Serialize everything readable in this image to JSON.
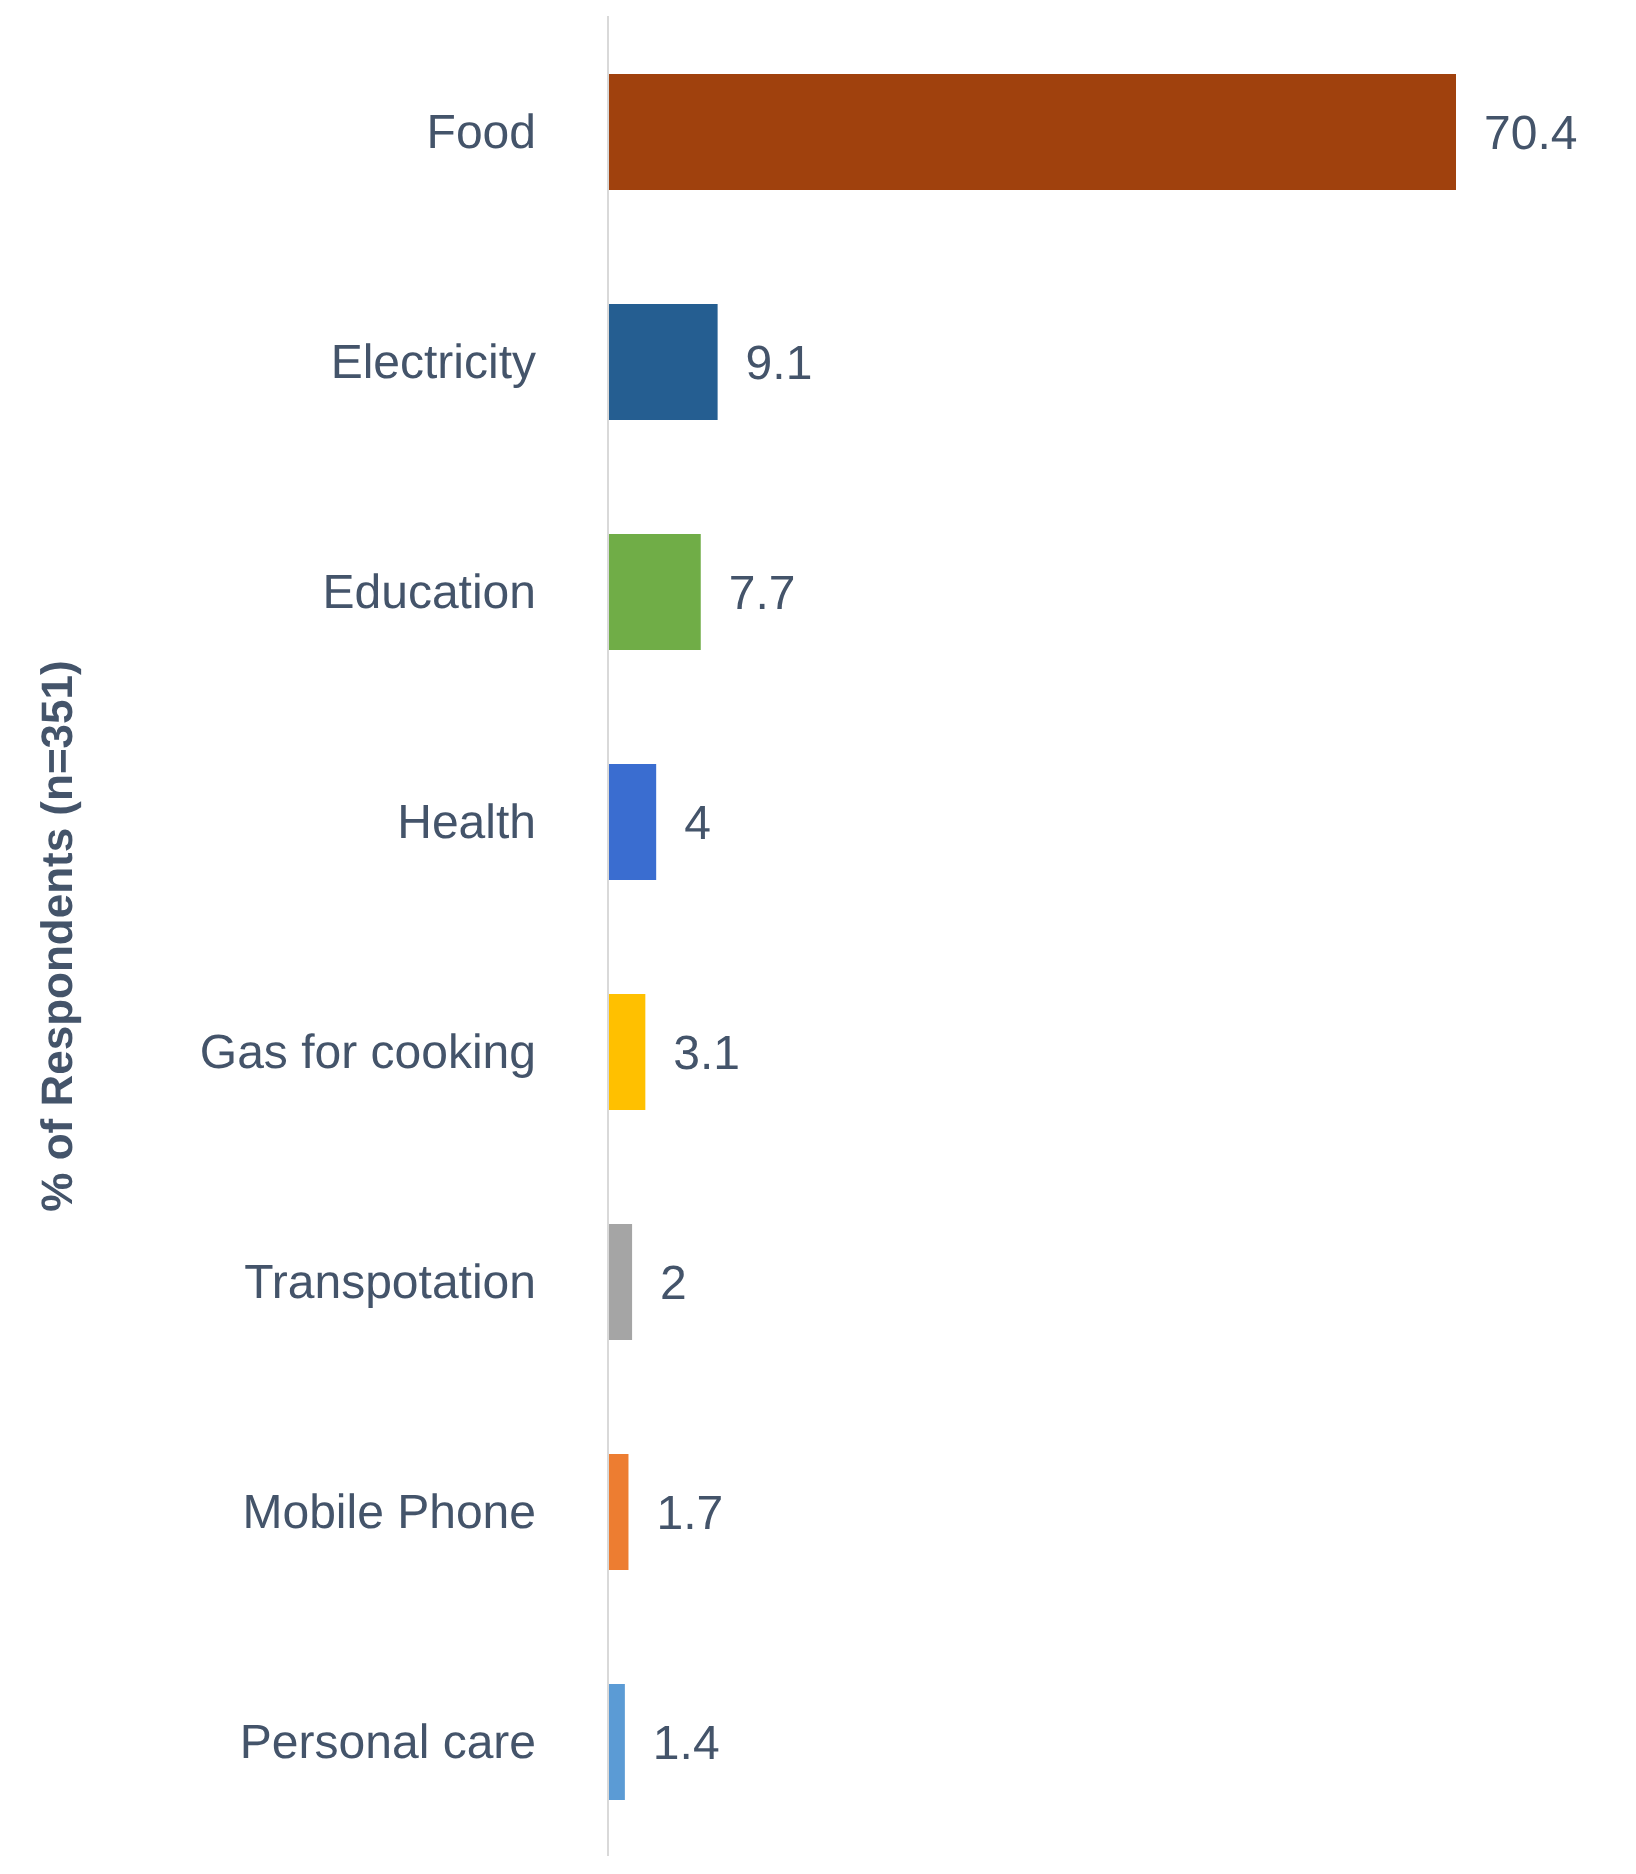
{
  "chart_data": {
    "type": "bar",
    "orientation": "horizontal",
    "ylabel": "% of Respondents (n=351)",
    "categories": [
      "Food",
      "Electricity",
      "Education",
      "Health",
      "Gas for cooking",
      "Transpotation",
      "Mobile Phone",
      "Personal care"
    ],
    "values": [
      70.4,
      9.1,
      7.7,
      4,
      3.1,
      2,
      1.7,
      1.4
    ],
    "colors": [
      "#a0410d",
      "#255e91",
      "#70ad47",
      "#3a6dd0",
      "#ffc000",
      "#a5a5a5",
      "#ed7d31",
      "#5b9bd5"
    ],
    "data_labels": true
  }
}
